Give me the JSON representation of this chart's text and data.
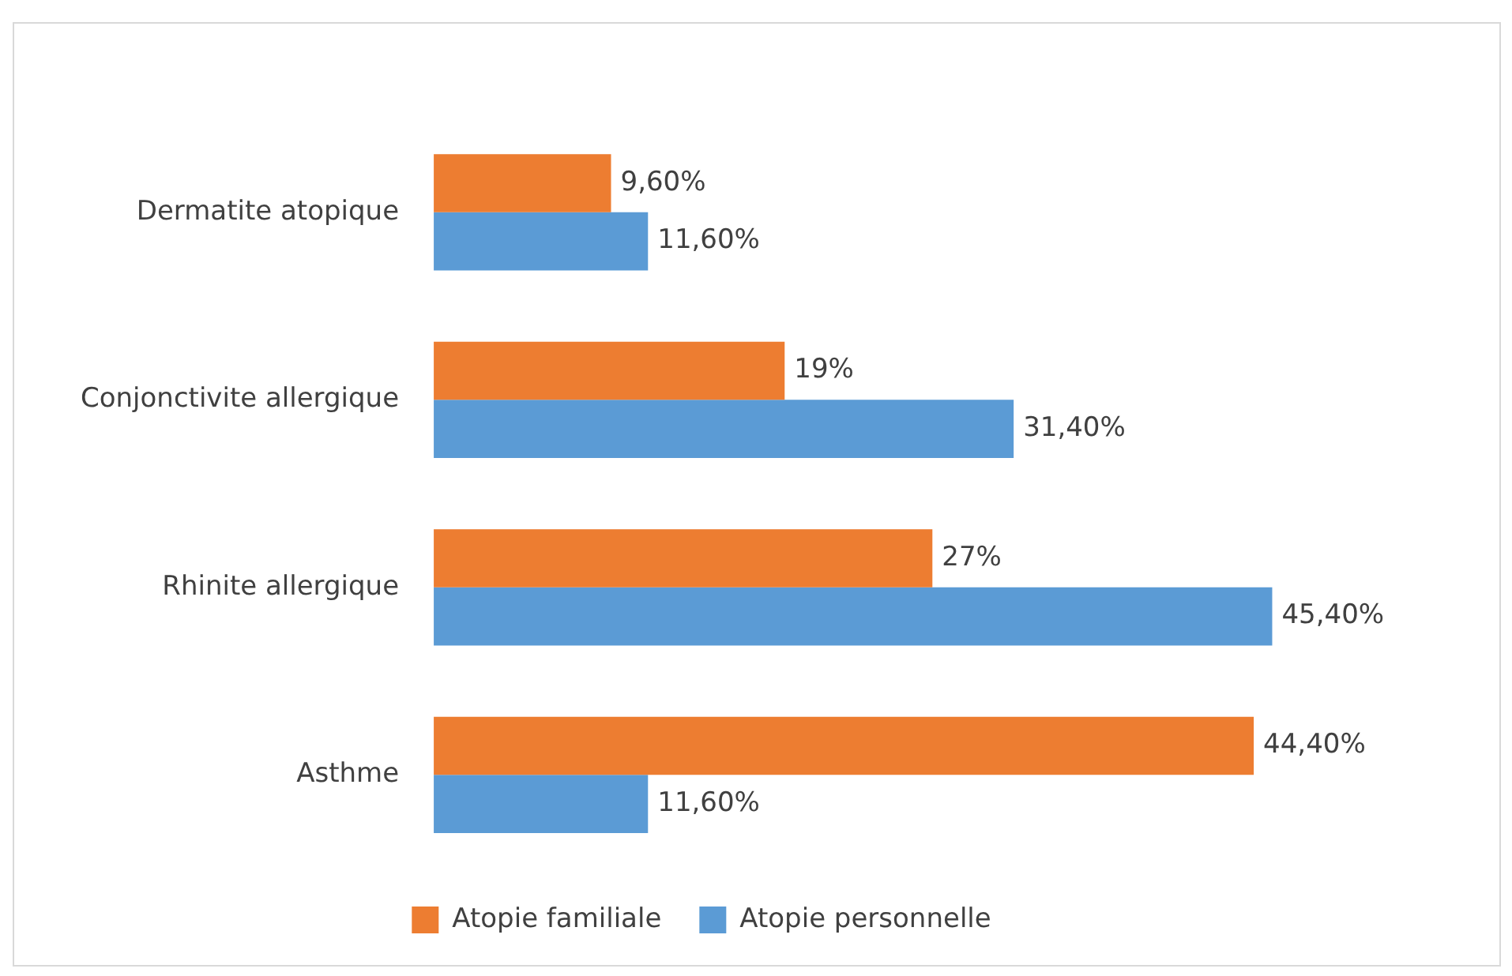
{
  "chart_data": {
    "type": "bar",
    "orientation": "horizontal",
    "categories": [
      "Dermatite atopique",
      "Conjonctivite allergique",
      "Rhinite allergique",
      "Asthme"
    ],
    "series": [
      {
        "name": "Atopie familiale",
        "color": "#ed7d31",
        "values": [
          9.6,
          19,
          27,
          44.4
        ],
        "value_labels": [
          "9,60%",
          "19%",
          "27%",
          "44,40%"
        ]
      },
      {
        "name": "Atopie personnelle",
        "color": "#5b9bd5",
        "values": [
          11.6,
          31.4,
          45.4,
          11.6
        ],
        "value_labels": [
          "11,60%",
          "31,40%",
          "45,40%",
          "11,60%"
        ]
      }
    ],
    "legend": "bottom",
    "grid": false
  }
}
